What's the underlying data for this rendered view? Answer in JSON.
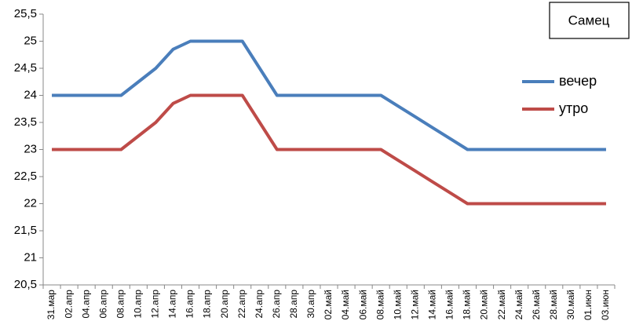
{
  "chart_data": {
    "type": "line",
    "annotation": "Самец",
    "categories": [
      "31.мар",
      "02.апр",
      "04.апр",
      "06.апр",
      "08.апр",
      "10.апр",
      "12.апр",
      "14.апр",
      "16.апр",
      "18.апр",
      "20.апр",
      "22.апр",
      "24.апр",
      "26.апр",
      "28.апр",
      "30.апр",
      "02.май",
      "04.май",
      "06.май",
      "08.май",
      "10.май",
      "12.май",
      "14.май",
      "16.май",
      "18.май",
      "20.май",
      "22.май",
      "24.май",
      "26.май",
      "28.май",
      "30.май",
      "01.июн",
      "03.июн"
    ],
    "series": [
      {
        "name": "вечер",
        "color": "#4a7ebb",
        "values": [
          24,
          24,
          24,
          24,
          24,
          24.25,
          24.5,
          24.85,
          25,
          25,
          25,
          25,
          24.5,
          24,
          24,
          24,
          24,
          24,
          24,
          24,
          23.8,
          23.6,
          23.4,
          23.2,
          23,
          23,
          23,
          23,
          23,
          23,
          23,
          23,
          23
        ]
      },
      {
        "name": "утро",
        "color": "#be4b48",
        "values": [
          23,
          23,
          23,
          23,
          23,
          23.25,
          23.5,
          23.85,
          24,
          24,
          24,
          24,
          23.5,
          23,
          23,
          23,
          23,
          23,
          23,
          23,
          22.8,
          22.6,
          22.4,
          22.2,
          22,
          22,
          22,
          22,
          22,
          22,
          22,
          22,
          22
        ]
      }
    ],
    "ylim": [
      20.5,
      25.5
    ],
    "yticks": [
      {
        "value": 20.5,
        "label": "20,5"
      },
      21,
      {
        "value": 21.5,
        "label": "21,5"
      },
      22,
      {
        "value": 22.5,
        "label": "22,5"
      },
      23,
      {
        "value": 23.5,
        "label": "23,5"
      },
      24,
      {
        "value": 24.5,
        "label": "24,5"
      },
      25,
      {
        "value": 25.5,
        "label": "25,5"
      }
    ],
    "grid": false,
    "legend": "right"
  }
}
